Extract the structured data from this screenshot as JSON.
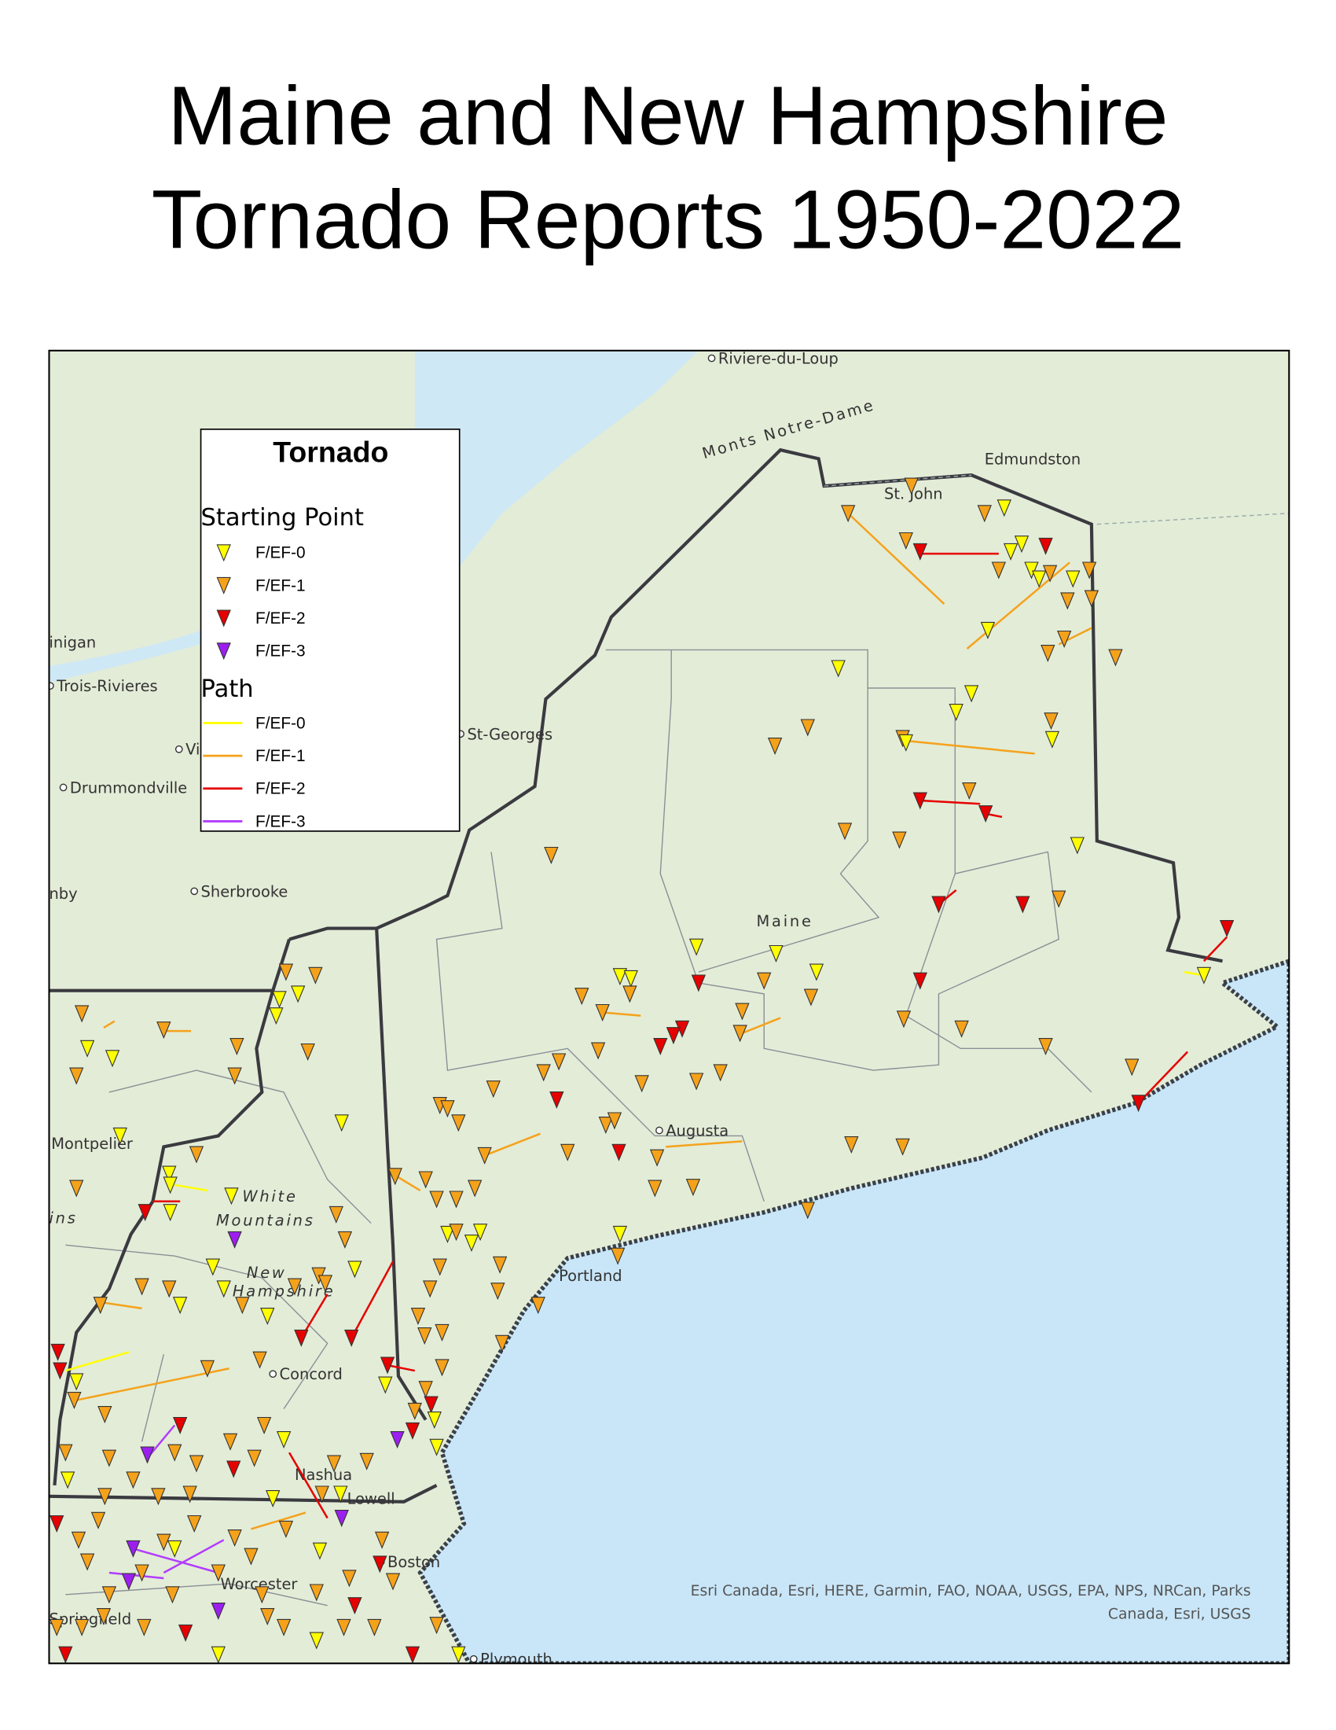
{
  "title": [
    "Maine and New Hampshire",
    "Tornado Reports 1950-2022"
  ],
  "legend": {
    "title": "Tornado",
    "starting_point": {
      "heading": "Starting Point",
      "items": [
        {
          "label": "F/EF-0",
          "color": "#ffff00"
        },
        {
          "label": "F/EF-1",
          "color": "#f5a21b"
        },
        {
          "label": "F/EF-2",
          "color": "#e60000"
        },
        {
          "label": "F/EF-3",
          "color": "#9c1ff0"
        }
      ]
    },
    "path": {
      "heading": "Path",
      "items": [
        {
          "label": "F/EF-0",
          "color": "#ffff00"
        },
        {
          "label": "F/EF-1",
          "color": "#f5a21b"
        },
        {
          "label": "F/EF-2",
          "color": "#e60000"
        },
        {
          "label": "F/EF-3",
          "color": "#b23cff"
        }
      ]
    }
  },
  "places": [
    "Riviere-du-Loup",
    "Monts Notre-Dame",
    "Edmundston",
    "St. John",
    "inigan",
    "Trois-Rivieres",
    "St-Georges",
    "Vi",
    "Drummondville",
    "nby",
    "Sherbrooke",
    "Maine",
    "Montpelier",
    "ins",
    "White",
    "Mountains",
    "New",
    "Hampshire",
    "Augusta",
    "Portland",
    "Concord",
    "Nashua",
    "Lowell",
    "Boston",
    "Worcester",
    "Springfield",
    "Plymouth"
  ],
  "attribution": [
    "Esri Canada, Esri, HERE, Garmin, FAO, NOAA, USGS, EPA, NPS, NRCan, Parks",
    "Canada, Esri, USGS"
  ]
}
